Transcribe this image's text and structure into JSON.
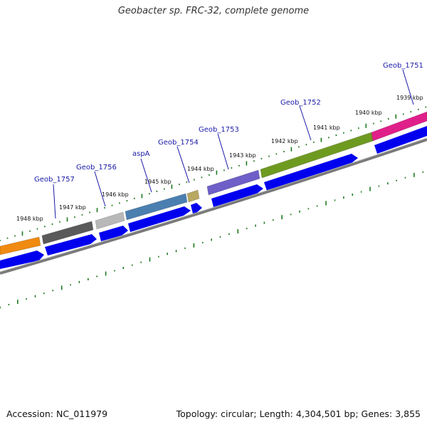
{
  "title": "Geobacter sp. FRC-32, complete genome",
  "footer": {
    "accession": "Accession: NC_011979",
    "summary": "Topology: circular; Length: 4,304,501 bp; Genes: 3,855"
  },
  "colors": {
    "cds_arrow": "#0000ee",
    "backbone": "#808080",
    "gc_ticks": "#1e7a1e",
    "gene_label": "#1a1aa8"
  },
  "kbp_ticks": [
    "1948 kbp",
    "1947 kbp",
    "1946 kbp",
    "1945 kbp",
    "1944 kbp",
    "1943 kbp",
    "1942 kbp",
    "1941 kbp",
    "1940 kbp",
    "1939 kbp"
  ],
  "genes": [
    {
      "label": "",
      "color": "#f08a10"
    },
    {
      "label": "Geob_1757",
      "color": "#5a5a5a"
    },
    {
      "label": "Geob_1756",
      "color": "#b8b8b8"
    },
    {
      "label": "aspA",
      "color": "#4a7fb0"
    },
    {
      "label": "Geob_1754",
      "color": "#b8a860"
    },
    {
      "label": "Geob_1753",
      "color": "#6e5ec8"
    },
    {
      "label": "Geob_1752",
      "color": "#6f9a20"
    },
    {
      "label": "Geob_1751",
      "color": "#e0208a"
    }
  ]
}
